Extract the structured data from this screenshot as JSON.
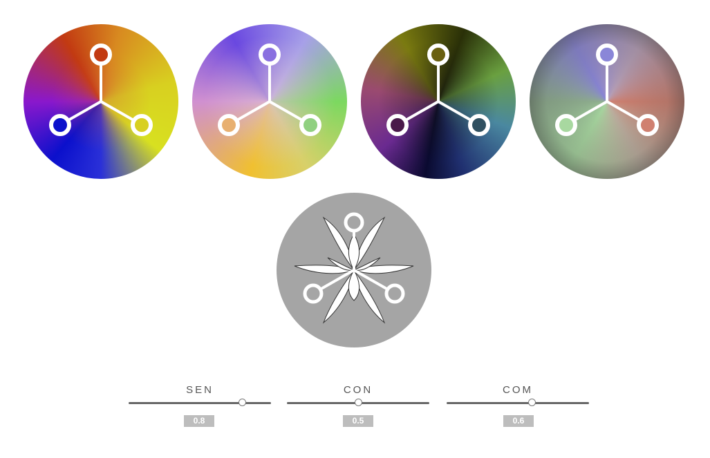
{
  "wheels": [
    {
      "name": "wheel-1",
      "icon": "tri-node-icon"
    },
    {
      "name": "wheel-2",
      "icon": "tri-node-icon"
    },
    {
      "name": "wheel-3",
      "icon": "tri-node-icon"
    },
    {
      "name": "wheel-4",
      "icon": "tri-node-icon"
    }
  ],
  "center": {
    "icon": "flower-icon"
  },
  "sliders": [
    {
      "label": "SEN",
      "value": "0.8",
      "level": 0.8
    },
    {
      "label": "CON",
      "value": "0.5",
      "level": 0.5
    },
    {
      "label": "COM",
      "value": "0.6",
      "level": 0.6
    }
  ],
  "colors": {
    "center_bg": "#a5a5a5",
    "track": "#666666",
    "value_badge": "#bdbdbd"
  }
}
